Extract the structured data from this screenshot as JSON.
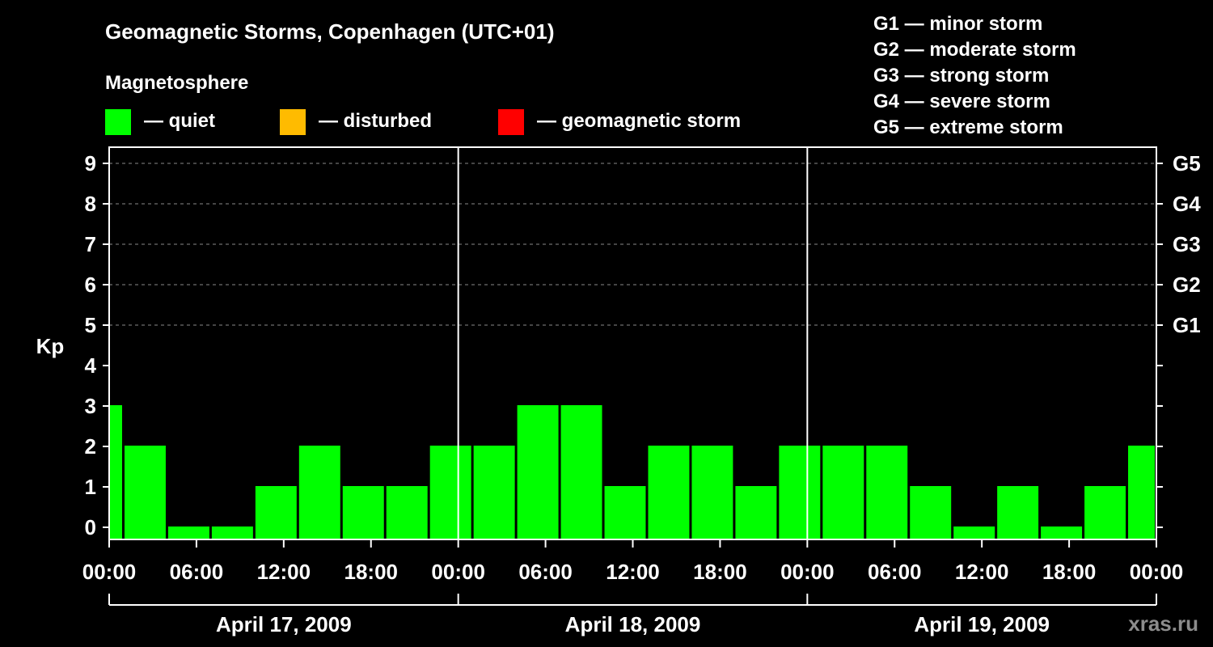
{
  "chart_data": {
    "type": "bar",
    "title": "Geomagnetic Storms, Copenhagen (UTC+01)",
    "legend_title": "Magnetosphere",
    "legend": [
      {
        "color": "#00ff00",
        "label": "— quiet"
      },
      {
        "color": "#ffbb00",
        "label": "— disturbed"
      },
      {
        "color": "#ff0000",
        "label": "— geomagnetic storm"
      }
    ],
    "g_scale_legend": [
      "G1 — minor storm",
      "G2 — moderate storm",
      "G3 — strong storm",
      "G4 — severe storm",
      "G5 — extreme storm"
    ],
    "ylabel": "Kp",
    "ylim": [
      0,
      9
    ],
    "y_ticks": [
      "0",
      "1",
      "2",
      "3",
      "4",
      "5",
      "6",
      "7",
      "8",
      "9"
    ],
    "right_ticks": [
      {
        "kp": 5,
        "label": "G1"
      },
      {
        "kp": 6,
        "label": "G2"
      },
      {
        "kp": 7,
        "label": "G3"
      },
      {
        "kp": 8,
        "label": "G4"
      },
      {
        "kp": 9,
        "label": "G5"
      }
    ],
    "x_ticks": [
      "00:00",
      "06:00",
      "12:00",
      "18:00",
      "00:00",
      "06:00",
      "12:00",
      "18:00",
      "00:00",
      "06:00",
      "12:00",
      "18:00",
      "00:00"
    ],
    "x_tick_hours": [
      0,
      6,
      12,
      18,
      24,
      30,
      36,
      42,
      48,
      54,
      60,
      66,
      72
    ],
    "xlim_hours": [
      0,
      72
    ],
    "days": [
      "April 17, 2009",
      "April 18, 2009",
      "April 19, 2009"
    ],
    "bar_start_hours": [
      0,
      1,
      4,
      7,
      10,
      13,
      16,
      19,
      22,
      25,
      28,
      31,
      34,
      37,
      40,
      43,
      46,
      49,
      52,
      55,
      58,
      61,
      64,
      67,
      70
    ],
    "bar_end_hours": [
      1,
      4,
      7,
      10,
      13,
      16,
      19,
      22,
      25,
      28,
      31,
      34,
      37,
      40,
      43,
      46,
      49,
      52,
      55,
      58,
      61,
      64,
      67,
      70,
      72
    ],
    "values": [
      3,
      2,
      0,
      0,
      1,
      2,
      1,
      1,
      2,
      2,
      3,
      3,
      1,
      2,
      2,
      1,
      2,
      2,
      2,
      1,
      0,
      1,
      0,
      1,
      2
    ],
    "bar_color": "#00ff00",
    "grid": true,
    "watermark": "xras.ru"
  }
}
